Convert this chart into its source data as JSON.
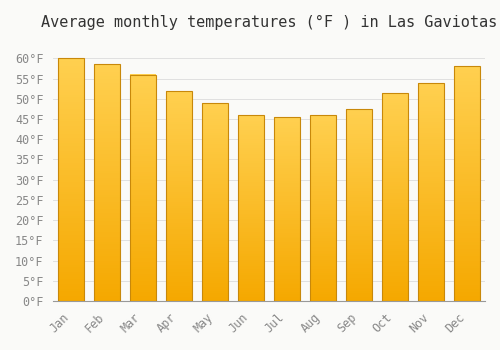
{
  "title": "Average monthly temperatures (°F ) in Las Gaviotas",
  "months": [
    "Jan",
    "Feb",
    "Mar",
    "Apr",
    "May",
    "Jun",
    "Jul",
    "Aug",
    "Sep",
    "Oct",
    "Nov",
    "Dec"
  ],
  "values": [
    60,
    58.5,
    56,
    52,
    49,
    46,
    45.5,
    46,
    47.5,
    51.5,
    54,
    58
  ],
  "bar_color_top": "#FFD050",
  "bar_color_bottom": "#F5A800",
  "bar_edge_color": "#C8880A",
  "background_color": "#FAFAF8",
  "plot_bg_color": "#FAFAF8",
  "grid_color": "#E0E0E0",
  "ylim": [
    0,
    65
  ],
  "yticks": [
    0,
    5,
    10,
    15,
    20,
    25,
    30,
    35,
    40,
    45,
    50,
    55,
    60
  ],
  "ylabel_suffix": "°F",
  "title_fontsize": 11,
  "tick_fontsize": 8.5,
  "tick_color": "#888888",
  "title_color": "#333333",
  "font_family": "monospace",
  "bar_width": 0.72
}
